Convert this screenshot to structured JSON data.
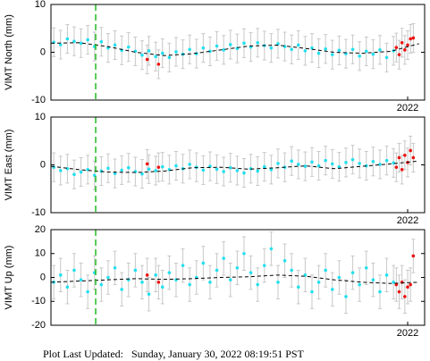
{
  "chart_data": [
    {
      "type": "scatter",
      "ylabel": "VIMT North (mm)",
      "xlim": [
        2015.7,
        2022.3
      ],
      "ylim": [
        -10,
        10
      ],
      "xticks": [
        2022
      ],
      "yticks": [
        -10,
        0,
        10
      ],
      "vline_x": 2016.49,
      "vline_color": "#22bb22",
      "error": 3,
      "error_color": "#c8c8c8",
      "series": [
        {
          "kind": "points",
          "color": "#22e0f0",
          "x": [
            2015.75,
            2015.87,
            2015.99,
            2016.11,
            2016.23,
            2016.35,
            2016.47,
            2016.59,
            2016.71,
            2016.83,
            2016.95,
            2017.07,
            2017.19,
            2017.31,
            2017.43,
            2017.55,
            2017.67,
            2017.79,
            2017.91,
            2018.03,
            2018.15,
            2018.27,
            2018.39,
            2018.51,
            2018.63,
            2018.75,
            2018.87,
            2018.99,
            2019.11,
            2019.23,
            2019.35,
            2019.47,
            2019.59,
            2019.71,
            2019.83,
            2019.95,
            2020.07,
            2020.19,
            2020.31,
            2020.43,
            2020.55,
            2020.67,
            2020.79,
            2020.91,
            2021.03,
            2021.15,
            2021.27,
            2021.39,
            2021.51,
            2021.63,
            2021.75
          ],
          "values": [
            2.1,
            1.6,
            2.8,
            2.3,
            1.9,
            2.6,
            1.2,
            2.2,
            0.9,
            1.5,
            0.4,
            1.1,
            0.2,
            -0.6,
            0.3,
            -0.9,
            -0.2,
            -1.1,
            0.1,
            -0.4,
            0.6,
            -0.3,
            0.9,
            0.2,
            1.3,
            0.5,
            1.6,
            0.8,
            1.9,
            1.1,
            2.0,
            1.4,
            0.9,
            1.8,
            1.2,
            0.6,
            1.5,
            0.3,
            0.9,
            -0.2,
            0.7,
            -0.5,
            0.4,
            -0.3,
            0.6,
            -0.8,
            0.2,
            -0.4,
            0.5,
            -1.1,
            0.3
          ]
        },
        {
          "kind": "points",
          "color": "#ee1111",
          "x": [
            2017.4,
            2017.6,
            2021.8,
            2021.85,
            2021.9,
            2021.95,
            2022.0,
            2022.05,
            2022.1
          ],
          "values": [
            -1.5,
            -2.5,
            1.0,
            -0.5,
            2.0,
            0.5,
            1.5,
            2.8,
            3.0
          ]
        },
        {
          "kind": "model",
          "color": "#000000",
          "x": [
            2015.7,
            2016.2,
            2016.7,
            2017.2,
            2017.7,
            2018.2,
            2018.7,
            2019.2,
            2019.7,
            2020.2,
            2020.7,
            2021.2,
            2021.7,
            2022.2
          ],
          "values": [
            1.9,
            2.0,
            1.2,
            0.0,
            -0.7,
            -0.3,
            0.5,
            1.3,
            1.5,
            0.8,
            0.0,
            -0.2,
            0.2,
            1.8
          ]
        }
      ]
    },
    {
      "type": "scatter",
      "ylabel": "VIMT East (mm)",
      "xlim": [
        2015.7,
        2022.3
      ],
      "ylim": [
        -10,
        10
      ],
      "xticks": [
        2022
      ],
      "yticks": [
        -10,
        0,
        10
      ],
      "vline_x": 2016.49,
      "vline_color": "#22bb22",
      "error": 3,
      "error_color": "#c8c8c8",
      "series": [
        {
          "kind": "points",
          "color": "#22e0f0",
          "x": [
            2015.75,
            2015.87,
            2015.99,
            2016.11,
            2016.23,
            2016.35,
            2016.47,
            2016.59,
            2016.71,
            2016.83,
            2016.95,
            2017.07,
            2017.19,
            2017.31,
            2017.43,
            2017.55,
            2017.67,
            2017.79,
            2017.91,
            2018.03,
            2018.15,
            2018.27,
            2018.39,
            2018.51,
            2018.63,
            2018.75,
            2018.87,
            2018.99,
            2019.11,
            2019.23,
            2019.35,
            2019.47,
            2019.59,
            2019.71,
            2019.83,
            2019.95,
            2020.07,
            2020.19,
            2020.31,
            2020.43,
            2020.55,
            2020.67,
            2020.79,
            2020.91,
            2021.03,
            2021.15,
            2021.27,
            2021.39,
            2021.51,
            2021.63,
            2021.75
          ],
          "values": [
            -0.5,
            -1.2,
            -0.8,
            -2.0,
            -1.5,
            -1.0,
            -2.2,
            -1.3,
            -0.7,
            -1.8,
            -1.1,
            -0.6,
            -1.4,
            -1.9,
            -0.9,
            -1.2,
            -0.4,
            -1.0,
            -0.2,
            -0.8,
            0.1,
            -0.5,
            -1.1,
            -0.3,
            -0.9,
            -1.4,
            -0.6,
            -1.2,
            -1.7,
            -0.8,
            -1.3,
            -0.4,
            -1.0,
            0.3,
            -0.5,
            0.8,
            0.1,
            -0.3,
            0.6,
            -0.2,
            0.9,
            0.2,
            -0.4,
            0.5,
            1.1,
            0.3,
            -0.2,
            0.7,
            0.1,
            0.9,
            0.4
          ]
        },
        {
          "kind": "points",
          "color": "#ee1111",
          "x": [
            2017.4,
            2017.6,
            2021.8,
            2021.85,
            2021.9,
            2021.95,
            2022.0,
            2022.05,
            2022.1
          ],
          "values": [
            0.2,
            -0.5,
            -0.5,
            1.5,
            -1.0,
            2.0,
            0.5,
            3.0,
            1.5
          ]
        },
        {
          "kind": "model",
          "color": "#000000",
          "x": [
            2015.7,
            2016.2,
            2016.7,
            2017.2,
            2017.7,
            2018.2,
            2018.7,
            2019.2,
            2019.7,
            2020.2,
            2020.7,
            2021.2,
            2021.7,
            2022.2
          ],
          "values": [
            -0.3,
            -1.0,
            -1.5,
            -1.6,
            -1.3,
            -0.6,
            -0.5,
            -0.9,
            -0.6,
            -0.2,
            -0.8,
            -0.3,
            0.2,
            0.8
          ]
        }
      ]
    },
    {
      "type": "scatter",
      "ylabel": "VIMT Up (mm)",
      "xlim": [
        2015.7,
        2022.3
      ],
      "ylim": [
        -20,
        20
      ],
      "xticks": [
        2022
      ],
      "yticks": [
        -20,
        -10,
        0,
        10,
        20
      ],
      "vline_x": 2016.49,
      "vline_color": "#22bb22",
      "error": 7,
      "error_color": "#c8c8c8",
      "series": [
        {
          "kind": "points",
          "color": "#22e0f0",
          "x": [
            2015.75,
            2015.87,
            2015.99,
            2016.11,
            2016.23,
            2016.35,
            2016.47,
            2016.59,
            2016.71,
            2016.83,
            2016.95,
            2017.07,
            2017.19,
            2017.31,
            2017.43,
            2017.55,
            2017.67,
            2017.79,
            2017.91,
            2018.03,
            2018.15,
            2018.27,
            2018.39,
            2018.51,
            2018.63,
            2018.75,
            2018.87,
            2018.99,
            2019.11,
            2019.23,
            2019.35,
            2019.47,
            2019.59,
            2019.71,
            2019.83,
            2019.95,
            2020.07,
            2020.19,
            2020.31,
            2020.43,
            2020.55,
            2020.67,
            2020.79,
            2020.91,
            2021.03,
            2021.15,
            2021.27,
            2021.39,
            2021.51,
            2021.63,
            2021.75
          ],
          "values": [
            -2,
            1,
            -4,
            3,
            -1,
            -6,
            2,
            -3,
            0,
            4,
            -5,
            -1,
            3,
            -2,
            -7,
            1,
            -4,
            2,
            -1,
            5,
            -3,
            0,
            6,
            -2,
            3,
            8,
            -1,
            4,
            10,
            2,
            -3,
            5,
            12,
            -2,
            7,
            3,
            -4,
            1,
            -6,
            -2,
            3,
            -5,
            0,
            -8,
            2,
            -3,
            4,
            -1,
            -6,
            1,
            -2
          ]
        },
        {
          "kind": "points",
          "color": "#ee1111",
          "x": [
            2017.4,
            2017.6,
            2021.8,
            2021.85,
            2021.9,
            2021.95,
            2022.0,
            2022.05,
            2022.1
          ],
          "values": [
            1,
            -2,
            -3,
            -6,
            -2,
            -8,
            -4,
            -3,
            9
          ]
        },
        {
          "kind": "model",
          "color": "#000000",
          "x": [
            2015.7,
            2016.2,
            2016.7,
            2017.2,
            2017.7,
            2018.2,
            2018.7,
            2019.2,
            2019.7,
            2020.2,
            2020.7,
            2021.2,
            2021.7,
            2022.2
          ],
          "values": [
            -2,
            -1.5,
            -1,
            -0.5,
            -0.8,
            -0.5,
            0,
            0.3,
            1,
            0.5,
            -1,
            -2,
            -2.5,
            -2
          ]
        }
      ]
    }
  ],
  "footer": "Plot Last Updated:   Sunday, January 30, 2022 08:19:51 PST"
}
